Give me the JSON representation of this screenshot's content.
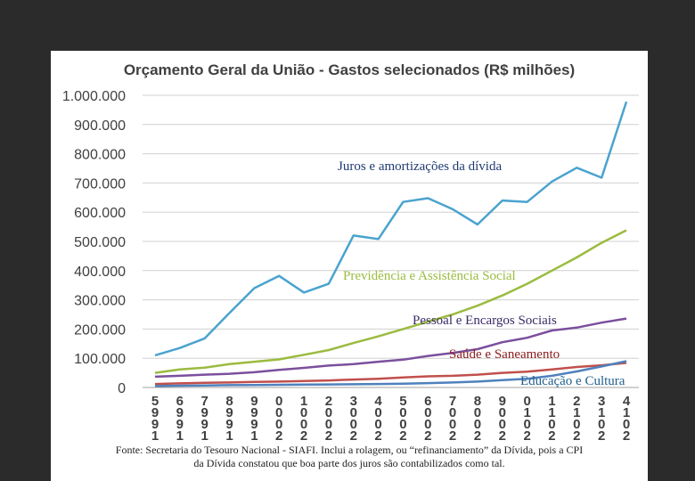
{
  "chart_data": {
    "type": "line",
    "title": "Orçamento Geral da União - Gastos selecionados (R$ milhões)",
    "ylim": [
      0,
      1000000
    ],
    "yticks": [
      "0",
      "100.000",
      "200.000",
      "300.000",
      "400.000",
      "500.000",
      "600.000",
      "700.000",
      "800.000",
      "900.000",
      "1.000.000"
    ],
    "ytick_values": [
      0,
      100000,
      200000,
      300000,
      400000,
      500000,
      600000,
      700000,
      800000,
      900000,
      1000000
    ],
    "x_labels": [
      "5991",
      "6991",
      "7991",
      "8991",
      "9991",
      "0002",
      "1002",
      "2002",
      "3002",
      "4002",
      "5002",
      "6002",
      "7002",
      "8002",
      "9002",
      "0102",
      "1102",
      "2102",
      "3102",
      "4102"
    ],
    "grid": true,
    "series": [
      {
        "name": "Juros e amortizações da dívida",
        "color": "#4aa3cf",
        "values": [
          110000,
          135000,
          168000,
          255000,
          340000,
          382000,
          325000,
          355000,
          520000,
          508000,
          635000,
          648000,
          610000,
          558000,
          640000,
          635000,
          705000,
          752000,
          718000,
          978000
        ]
      },
      {
        "name": "Previdência e Assistência Social",
        "color": "#9bbb3f",
        "values": [
          50000,
          62000,
          68000,
          80000,
          88000,
          96000,
          112000,
          128000,
          152000,
          175000,
          200000,
          225000,
          250000,
          280000,
          315000,
          355000,
          400000,
          445000,
          495000,
          538000
        ]
      },
      {
        "name": "Pessoal e Encargos Sociais",
        "color": "#7b4f9d",
        "values": [
          37000,
          40000,
          44000,
          47000,
          52000,
          60000,
          67000,
          75000,
          80000,
          88000,
          95000,
          108000,
          118000,
          131000,
          155000,
          170000,
          195000,
          205000,
          222000,
          236000
        ]
      },
      {
        "name": "Saúde e Saneamento",
        "color": "#c0504d",
        "values": [
          12000,
          14000,
          16000,
          17000,
          19000,
          20000,
          22000,
          24000,
          27000,
          30000,
          34000,
          38000,
          40000,
          44000,
          50000,
          54000,
          62000,
          70000,
          76000,
          84000
        ]
      },
      {
        "name": "Educação e Cultura",
        "color": "#4f81bd",
        "values": [
          5000,
          6000,
          7000,
          8000,
          8500,
          9000,
          10000,
          10500,
          11000,
          12000,
          13000,
          15000,
          17000,
          20000,
          25000,
          30000,
          40000,
          55000,
          72000,
          90000
        ]
      }
    ],
    "annotations": [
      {
        "text": "Juros e amortizações da dívida",
        "color": "#1f3b73"
      },
      {
        "text": "Previdência e Assistência Social",
        "color": "#9bbb3f"
      },
      {
        "text": "Pessoal e Encargos Sociais",
        "color": "#3a2a66"
      },
      {
        "text": "Saúde e Saneamento",
        "color": "#8b1a1a"
      },
      {
        "text": "Educação e Cultura",
        "color": "#1f5f8b"
      }
    ]
  },
  "footer": {
    "line1": "Fonte: Secretaria do Tesouro Nacional - SIAFI. Inclui a rolagem, ou “refinanciamento” da Dívida, pois a CPI",
    "line2": "da Dívida constatou que boa parte dos juros são contabilizados como tal."
  }
}
